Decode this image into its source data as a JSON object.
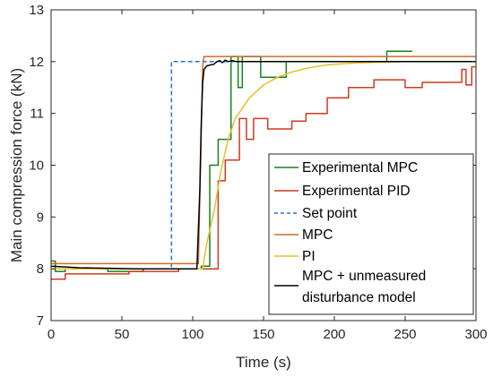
{
  "chart_data": {
    "type": "line",
    "title": "",
    "xlabel": "Time (s)",
    "ylabel": "Main compression force (kN)",
    "xlim": [
      0,
      300
    ],
    "ylim": [
      7,
      13
    ],
    "xticks": [
      0,
      50,
      100,
      150,
      200,
      250,
      300
    ],
    "yticks": [
      7,
      8,
      9,
      10,
      11,
      12,
      13
    ],
    "grid": false,
    "legend_position": "bottom-right",
    "series": [
      {
        "name": "Experimental MPC",
        "color": "#1a7f1a",
        "points": [
          [
            0,
            8.15
          ],
          [
            3,
            8.15
          ],
          [
            3,
            7.95
          ],
          [
            10,
            7.95
          ],
          [
            10,
            8.0
          ],
          [
            40,
            8.0
          ],
          [
            40,
            7.95
          ],
          [
            65,
            7.95
          ],
          [
            65,
            8.0
          ],
          [
            106,
            8.0
          ],
          [
            106,
            8.05
          ],
          [
            112,
            8.05
          ],
          [
            112,
            10.0
          ],
          [
            118,
            10.0
          ],
          [
            118,
            10.5
          ],
          [
            127,
            10.5
          ],
          [
            127,
            12.1
          ],
          [
            132,
            12.1
          ],
          [
            132,
            11.5
          ],
          [
            135,
            11.5
          ],
          [
            135,
            12.1
          ],
          [
            148,
            12.1
          ],
          [
            148,
            11.7
          ],
          [
            166,
            11.7
          ],
          [
            166,
            12.0
          ],
          [
            237,
            12.0
          ],
          [
            237,
            12.2
          ],
          [
            255,
            12.2
          ]
        ]
      },
      {
        "name": "Experimental PID",
        "color": "#d13a1e",
        "points": [
          [
            0,
            7.8
          ],
          [
            10,
            7.8
          ],
          [
            10,
            7.9
          ],
          [
            55,
            7.9
          ],
          [
            55,
            7.95
          ],
          [
            90,
            7.95
          ],
          [
            90,
            8.0
          ],
          [
            118,
            8.0
          ],
          [
            118,
            9.7
          ],
          [
            123,
            9.7
          ],
          [
            123,
            10.1
          ],
          [
            133,
            10.1
          ],
          [
            133,
            10.9
          ],
          [
            138,
            10.9
          ],
          [
            138,
            10.5
          ],
          [
            143,
            10.5
          ],
          [
            143,
            10.9
          ],
          [
            153,
            10.9
          ],
          [
            153,
            10.7
          ],
          [
            170,
            10.7
          ],
          [
            170,
            10.85
          ],
          [
            180,
            10.85
          ],
          [
            180,
            11.0
          ],
          [
            195,
            11.0
          ],
          [
            195,
            11.3
          ],
          [
            210,
            11.3
          ],
          [
            210,
            11.5
          ],
          [
            228,
            11.5
          ],
          [
            228,
            11.65
          ],
          [
            250,
            11.65
          ],
          [
            250,
            11.5
          ],
          [
            262,
            11.5
          ],
          [
            262,
            11.6
          ],
          [
            290,
            11.6
          ],
          [
            290,
            11.85
          ],
          [
            293,
            11.85
          ],
          [
            293,
            11.55
          ],
          [
            297,
            11.55
          ],
          [
            297,
            11.9
          ],
          [
            300,
            11.9
          ]
        ]
      },
      {
        "name": "Set point",
        "color": "#2f6fcf",
        "dash": true,
        "points": [
          [
            0,
            8.0
          ],
          [
            85,
            8.0
          ],
          [
            85,
            12.0
          ],
          [
            300,
            12.0
          ]
        ]
      },
      {
        "name": "MPC",
        "color": "#cc6d2a",
        "points": [
          [
            0,
            8.1
          ],
          [
            104,
            8.1
          ],
          [
            107,
            11.9
          ],
          [
            108,
            12.1
          ],
          [
            300,
            12.1
          ]
        ]
      },
      {
        "name": "PI",
        "color": "#e3c02d",
        "points": [
          [
            0,
            8.0
          ],
          [
            107,
            8.0
          ],
          [
            110,
            8.5
          ],
          [
            115,
            9.1
          ],
          [
            120,
            9.9
          ],
          [
            125,
            10.5
          ],
          [
            130,
            10.9
          ],
          [
            140,
            11.3
          ],
          [
            150,
            11.55
          ],
          [
            160,
            11.7
          ],
          [
            170,
            11.8
          ],
          [
            180,
            11.87
          ],
          [
            190,
            11.92
          ],
          [
            200,
            11.95
          ],
          [
            220,
            11.98
          ],
          [
            250,
            12.0
          ],
          [
            300,
            12.0
          ]
        ]
      },
      {
        "name": "MPC + unmeasured disturbance model",
        "color": "#000000",
        "points": [
          [
            0,
            8.05
          ],
          [
            20,
            8.02
          ],
          [
            60,
            8.0
          ],
          [
            103,
            8.0
          ],
          [
            105,
            9.5
          ],
          [
            106,
            10.8
          ],
          [
            107,
            11.6
          ],
          [
            108,
            11.85
          ],
          [
            110,
            11.92
          ],
          [
            115,
            11.95
          ],
          [
            117,
            12.0
          ],
          [
            119,
            12.02
          ],
          [
            121,
            11.98
          ],
          [
            123,
            12.03
          ],
          [
            125,
            12.0
          ],
          [
            128,
            12.02
          ],
          [
            131,
            12.0
          ],
          [
            300,
            12.0
          ]
        ]
      }
    ]
  },
  "legend": {
    "items": [
      {
        "label": "Experimental MPC"
      },
      {
        "label": "Experimental PID"
      },
      {
        "label": "Set point"
      },
      {
        "label": "MPC"
      },
      {
        "label": "PI"
      },
      {
        "label_line1": "MPC + unmeasured",
        "label_line2": "disturbance model"
      }
    ]
  }
}
